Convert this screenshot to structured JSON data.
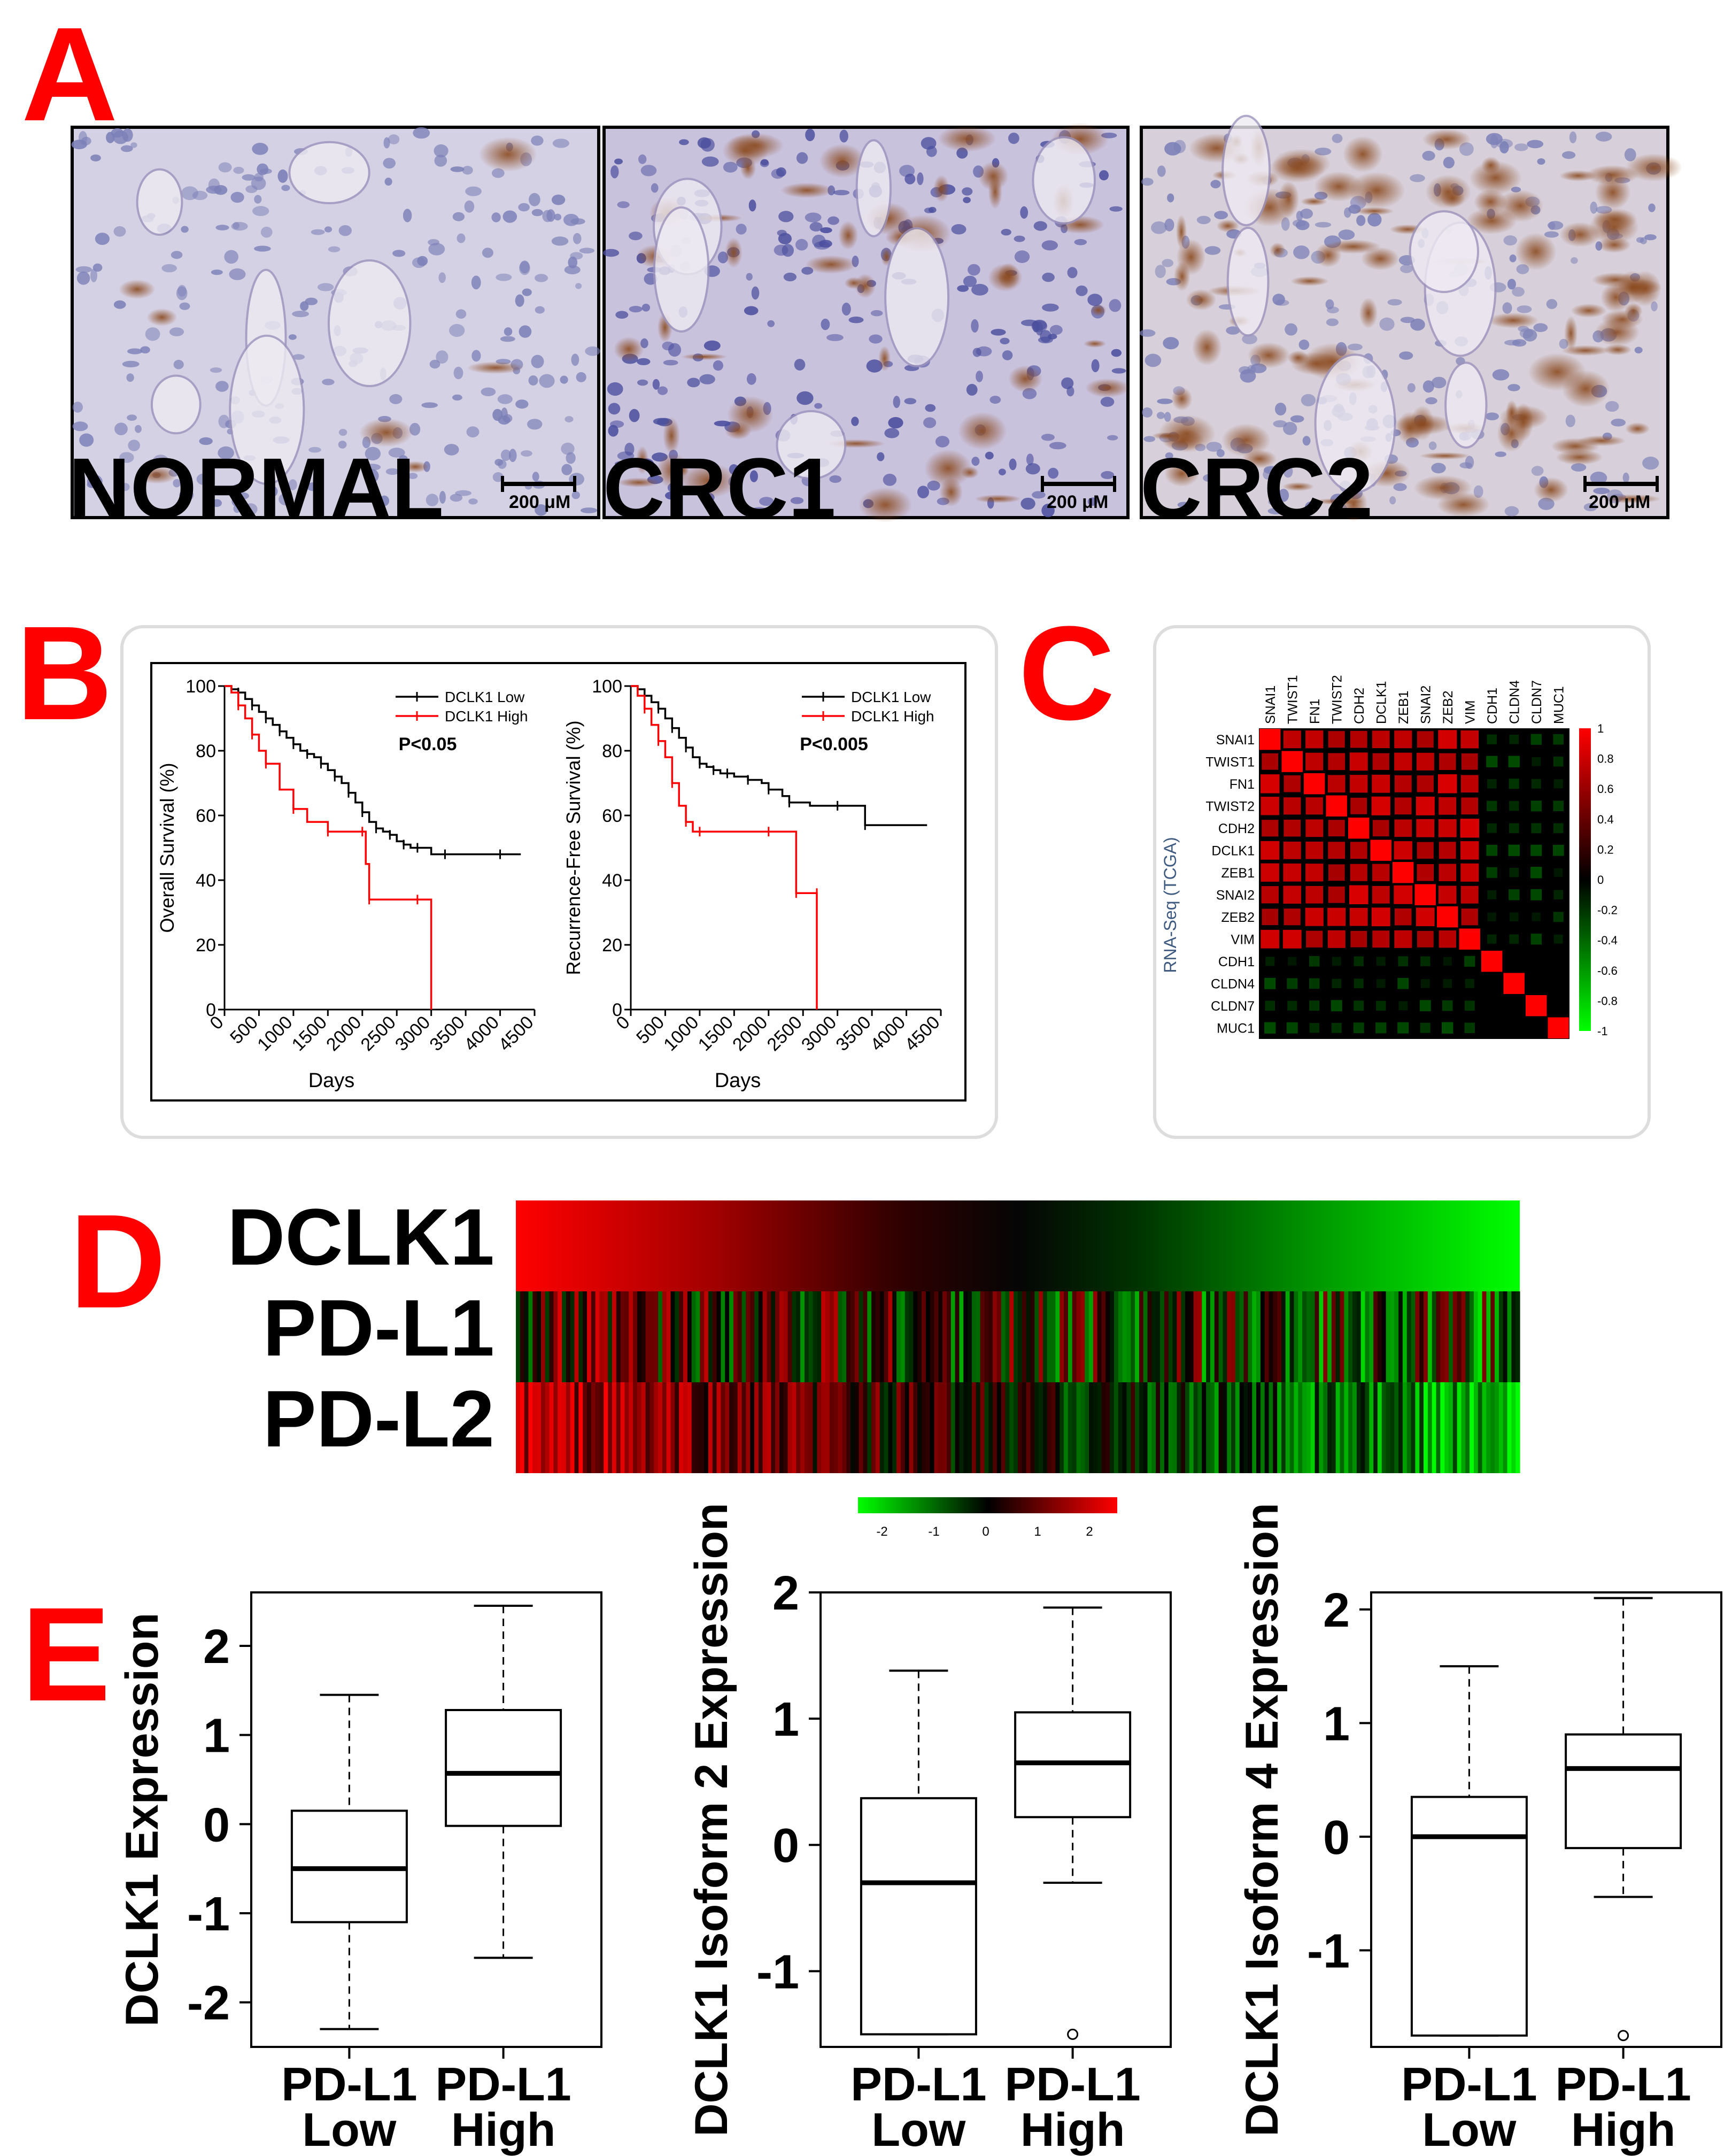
{
  "panel_letters": {
    "a": "A",
    "b": "B",
    "c": "C",
    "d": "D",
    "e": "E"
  },
  "colors": {
    "panel_letter": "#ff0000",
    "high_red": "#ff0000",
    "low_green": "#00ff00",
    "stain_brown": "#8b4a1f",
    "stain_blue": "#5b5fa8"
  },
  "panel_a": {
    "images": [
      {
        "label": "NORMAL",
        "scale_bar": "200 μM",
        "stain": "weak"
      },
      {
        "label": "CRC1",
        "scale_bar": "200 μM",
        "stain": "moderate"
      },
      {
        "label": "CRC2",
        "scale_bar": "200 μM",
        "stain": "strong"
      }
    ]
  },
  "chart_data": [
    {
      "type": "line",
      "panel": "B-left",
      "xlabel": "Days",
      "ylabel": "Overall Survival (%)",
      "xlim": [
        0,
        4500
      ],
      "ylim": [
        0,
        100
      ],
      "xticks": [
        "0",
        "500",
        "1000",
        "1500",
        "2000",
        "2500",
        "3000",
        "3500",
        "4000",
        "4500"
      ],
      "yticks": [
        "0",
        "20",
        "40",
        "60",
        "80",
        "100"
      ],
      "annotation": "P<0.05",
      "legend_position": "top-right",
      "series": [
        {
          "name": "DCLK1 Low",
          "color": "#000000",
          "x": [
            0,
            100,
            200,
            300,
            400,
            500,
            600,
            700,
            800,
            900,
            1000,
            1100,
            1200,
            1300,
            1400,
            1500,
            1600,
            1700,
            1800,
            1900,
            2000,
            2100,
            2200,
            2300,
            2400,
            2500,
            2600,
            2700,
            2800,
            3000,
            3200,
            3500,
            4000,
            4300
          ],
          "y": [
            100,
            99,
            98,
            96,
            94,
            92,
            90,
            88,
            86,
            84,
            82,
            80,
            79,
            78,
            76,
            74,
            72,
            70,
            67,
            64,
            61,
            58,
            56,
            55,
            54,
            52,
            51,
            50,
            50,
            48,
            48,
            48,
            48,
            48
          ]
        },
        {
          "name": "DCLK1 High",
          "color": "#ff0000",
          "x": [
            0,
            100,
            200,
            300,
            400,
            500,
            600,
            800,
            1000,
            1200,
            1500,
            1800,
            2000,
            2050,
            2100,
            2500,
            2800,
            3000,
            3000
          ],
          "y": [
            100,
            98,
            94,
            90,
            85,
            80,
            76,
            68,
            62,
            58,
            55,
            55,
            55,
            45,
            34,
            34,
            34,
            34,
            0
          ]
        }
      ]
    },
    {
      "type": "line",
      "panel": "B-right",
      "xlabel": "Days",
      "ylabel": "Recurrence-Free Survival (%)",
      "xlim": [
        0,
        4500
      ],
      "ylim": [
        0,
        100
      ],
      "xticks": [
        "0",
        "500",
        "1000",
        "1500",
        "2000",
        "2500",
        "3000",
        "3500",
        "4000",
        "4500"
      ],
      "yticks": [
        "0",
        "20",
        "40",
        "60",
        "80",
        "100"
      ],
      "annotation": "P<0.005",
      "legend_position": "top-right",
      "series": [
        {
          "name": "DCLK1 Low",
          "color": "#000000",
          "x": [
            0,
            100,
            200,
            300,
            400,
            500,
            600,
            700,
            800,
            900,
            1000,
            1100,
            1200,
            1300,
            1400,
            1500,
            1700,
            1900,
            2000,
            2200,
            2300,
            2600,
            3000,
            3300,
            3400,
            4300
          ],
          "y": [
            100,
            99,
            97,
            95,
            93,
            90,
            87,
            84,
            81,
            78,
            76,
            75,
            74,
            73,
            73,
            72,
            71,
            70,
            68,
            66,
            64,
            63,
            63,
            63,
            57,
            57
          ]
        },
        {
          "name": "DCLK1 High",
          "color": "#ff0000",
          "x": [
            0,
            100,
            200,
            300,
            400,
            500,
            600,
            700,
            800,
            900,
            1000,
            1500,
            2000,
            2300,
            2400,
            2450,
            2700,
            2700
          ],
          "y": [
            100,
            97,
            93,
            88,
            83,
            78,
            70,
            63,
            58,
            55,
            55,
            55,
            55,
            55,
            36,
            36,
            36,
            0
          ]
        }
      ]
    },
    {
      "type": "heatmap",
      "panel": "C",
      "ylabel": "RNA-Seq (TCGA)",
      "row_labels": [
        "SNAI1",
        "TWIST1",
        "FN1",
        "TWIST2",
        "CDH2",
        "DCLK1",
        "ZEB1",
        "SNAI2",
        "ZEB2",
        "VIM",
        "CDH1",
        "CLDN4",
        "CLDN7",
        "MUC1"
      ],
      "col_labels": [
        "SNAI1",
        "TWIST1",
        "FN1",
        "TWIST2",
        "CDH2",
        "DCLK1",
        "ZEB1",
        "SNAI2",
        "ZEB2",
        "VIM",
        "CDH1",
        "CLDN4",
        "CLDN7",
        "MUC1"
      ],
      "colorbar_ticks": [
        "1",
        "0.8",
        "0.6",
        "0.4",
        "0.2",
        "0",
        "-0.2",
        "-0.4",
        "-0.6",
        "-0.8",
        "-1"
      ],
      "vlim": [
        -1,
        1
      ],
      "groups": {
        "mesenchymal_mesenchymal_corr": 0.75,
        "epithelial_epithelial_corr": 0.0,
        "mesenchymal_epithelial_corr": -0.3,
        "diagonal": 1.0
      }
    },
    {
      "type": "heatmap",
      "panel": "D",
      "row_labels": [
        "DCLK1",
        "PD-L1",
        "PD-L2"
      ],
      "colorbar_ticks": [
        "-2",
        "-1",
        "0",
        "1",
        "2"
      ],
      "vlim": [
        -2,
        2
      ],
      "note": "samples sorted by DCLK1 expression from high (red) to low (green)"
    },
    {
      "type": "box",
      "panel": "E1",
      "ylabel": "DCLK1 Expression",
      "categories": [
        "PD-L1 Low",
        "PD-L1 High"
      ],
      "yticks": [
        "-2",
        "-1",
        "0",
        "1",
        "2"
      ],
      "ylim": [
        -2.5,
        2.6
      ],
      "boxes": [
        {
          "min": -2.3,
          "q1": -1.1,
          "median": -0.5,
          "q3": 0.15,
          "max": 1.45,
          "outliers": []
        },
        {
          "min": -1.5,
          "q1": -0.02,
          "median": 0.57,
          "q3": 1.28,
          "max": 2.45,
          "outliers": []
        }
      ]
    },
    {
      "type": "box",
      "panel": "E2",
      "ylabel": "DCLK1 Isoform 2 Expression",
      "categories": [
        "PD-L1 Low",
        "PD-L1 High"
      ],
      "yticks": [
        "-1",
        "0",
        "1",
        "2"
      ],
      "ylim": [
        -1.6,
        2.0
      ],
      "boxes": [
        {
          "min": -1.5,
          "q1": -1.5,
          "median": -0.3,
          "q3": 0.37,
          "max": 1.38,
          "outliers": []
        },
        {
          "min": -0.3,
          "q1": 0.22,
          "median": 0.65,
          "q3": 1.05,
          "max": 1.88,
          "outliers": [
            -1.5
          ]
        }
      ]
    },
    {
      "type": "box",
      "panel": "E3",
      "ylabel": "DCLK1 Isoform 4 Expression",
      "categories": [
        "PD-L1 Low",
        "PD-L1 High"
      ],
      "yticks": [
        "-1",
        "0",
        "1",
        "2"
      ],
      "ylim": [
        -1.85,
        2.15
      ],
      "boxes": [
        {
          "min": -1.75,
          "q1": -1.75,
          "median": 0.0,
          "q3": 0.35,
          "max": 1.5,
          "outliers": []
        },
        {
          "min": -0.53,
          "q1": -0.1,
          "median": 0.6,
          "q3": 0.9,
          "max": 2.1,
          "outliers": [
            -1.75
          ]
        }
      ]
    }
  ]
}
